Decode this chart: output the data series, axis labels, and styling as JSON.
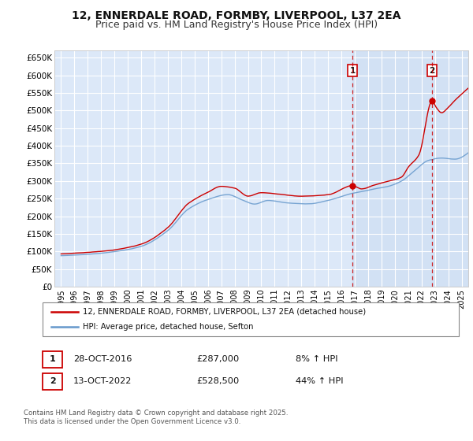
{
  "title": "12, ENNERDALE ROAD, FORMBY, LIVERPOOL, L37 2EA",
  "subtitle": "Price paid vs. HM Land Registry's House Price Index (HPI)",
  "legend_label_red": "12, ENNERDALE ROAD, FORMBY, LIVERPOOL, L37 2EA (detached house)",
  "legend_label_blue": "HPI: Average price, detached house, Sefton",
  "annotation_1_label": "1",
  "annotation_1_date": "28-OCT-2016",
  "annotation_1_price": "£287,000",
  "annotation_1_hpi": "8% ↑ HPI",
  "annotation_2_label": "2",
  "annotation_2_date": "13-OCT-2022",
  "annotation_2_price": "£528,500",
  "annotation_2_hpi": "44% ↑ HPI",
  "vline_1_x": 2016.82,
  "vline_2_x": 2022.79,
  "marker_1_x": 2016.82,
  "marker_1_y": 287000,
  "marker_2_x": 2022.79,
  "marker_2_y": 528500,
  "ylim": [
    0,
    670000
  ],
  "xlim": [
    1994.5,
    2025.5
  ],
  "yticks": [
    0,
    50000,
    100000,
    150000,
    200000,
    250000,
    300000,
    350000,
    400000,
    450000,
    500000,
    550000,
    600000,
    650000
  ],
  "ytick_labels": [
    "£0",
    "£50K",
    "£100K",
    "£150K",
    "£200K",
    "£250K",
    "£300K",
    "£350K",
    "£400K",
    "£450K",
    "£500K",
    "£550K",
    "£600K",
    "£650K"
  ],
  "xticks": [
    1995,
    1996,
    1997,
    1998,
    1999,
    2000,
    2001,
    2002,
    2003,
    2004,
    2005,
    2006,
    2007,
    2008,
    2009,
    2010,
    2011,
    2012,
    2013,
    2014,
    2015,
    2016,
    2017,
    2018,
    2019,
    2020,
    2021,
    2022,
    2023,
    2024,
    2025
  ],
  "background_color": "#ffffff",
  "plot_bg_color": "#dce8f8",
  "grid_color": "#ffffff",
  "red_color": "#cc0000",
  "blue_color": "#6699cc",
  "vline_color": "#cc0000",
  "footer_text": "Contains HM Land Registry data © Crown copyright and database right 2025.\nThis data is licensed under the Open Government Licence v3.0.",
  "title_fontsize": 10,
  "subtitle_fontsize": 9
}
